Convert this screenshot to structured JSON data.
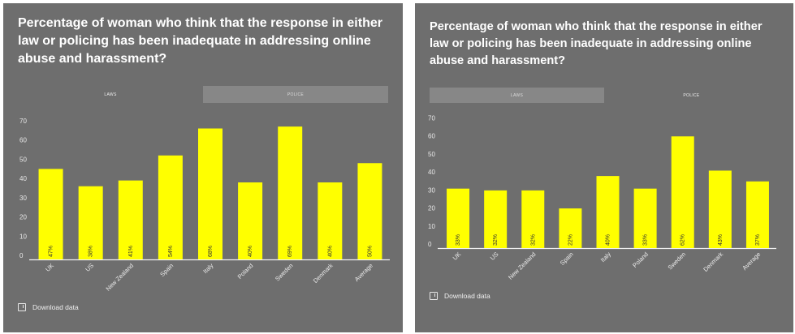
{
  "panels": [
    {
      "title": "Percentage of woman who think that the response in either law or policing has been inadequate in addressing online abuse and harassment?",
      "tabs": [
        {
          "label": "LAWS",
          "active": true
        },
        {
          "label": "POLICE",
          "active": false
        }
      ],
      "download_label": "Download data",
      "chart_data": {
        "type": "bar",
        "categories": [
          "UK",
          "US",
          "New Zealand",
          "Spain",
          "Italy",
          "Poland",
          "Sweden",
          "Denmark",
          "Average"
        ],
        "values": [
          47,
          38,
          41,
          54,
          68,
          40,
          69,
          40,
          50
        ],
        "labels": [
          "47%",
          "38%",
          "41%",
          "54%",
          "68%",
          "40%",
          "69%",
          "40%",
          "50%"
        ],
        "y_ticks": [
          0,
          10,
          20,
          30,
          40,
          50,
          60,
          70
        ],
        "ylim": [
          0,
          72
        ],
        "bar_color": "#ffff00",
        "grid": false
      }
    },
    {
      "title": "Percentage of woman who think that the response in either law or policing has been inadequate in addressing online abuse and harassment?",
      "tabs": [
        {
          "label": "LAWS",
          "active": false
        },
        {
          "label": "POLICE",
          "active": true
        }
      ],
      "download_label": "Download data",
      "chart_data": {
        "type": "bar",
        "categories": [
          "UK",
          "US",
          "New Zealand",
          "Spain",
          "Italy",
          "Poland",
          "Sweden",
          "Denmark",
          "Average"
        ],
        "values": [
          33,
          32,
          32,
          22,
          40,
          33,
          62,
          43,
          37
        ],
        "labels": [
          "33%",
          "32%",
          "32%",
          "22%",
          "40%",
          "33%",
          "62%",
          "43%",
          "37%"
        ],
        "y_ticks": [
          0,
          10,
          20,
          30,
          40,
          50,
          60,
          70
        ],
        "ylim": [
          0,
          72
        ],
        "bar_color": "#ffff00",
        "grid": false
      }
    }
  ]
}
